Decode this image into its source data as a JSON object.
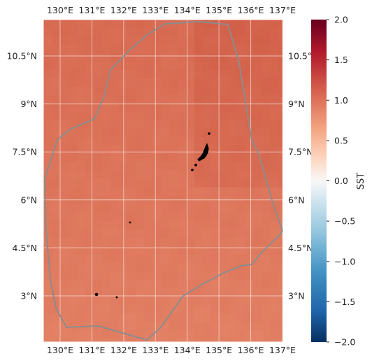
{
  "map": {
    "top_lon_labels": [
      "130°E",
      "131°E",
      "132°E",
      "133°E",
      "134°E",
      "135°E",
      "136°E",
      "137°E"
    ],
    "bottom_lon_labels": [
      "130°E",
      "131°E",
      "132°E",
      "133°E",
      "134°E",
      "135°E",
      "136°E",
      "137°E"
    ],
    "left_lat_labels": [
      "10.5°N",
      "9°N",
      "7.5°N",
      "6°N",
      "4.5°N",
      "3°N"
    ],
    "right_lat_labels": [
      "10.5°",
      "9°N",
      "7.5°N",
      "6°N",
      "4.5°N",
      "3°N"
    ],
    "lon_range": [
      129.4,
      137.0
    ],
    "lat_range": [
      1.6,
      11.6
    ],
    "gridlines": true,
    "boundary_color": "#8c8c8c",
    "land_color": "#000000"
  },
  "colorbar": {
    "label": "SST",
    "ticks": [
      "2.0",
      "1.5",
      "1.0",
      "0.5",
      "0.0",
      "−0.5",
      "−1.0",
      "−1.5",
      "−2.0"
    ],
    "tick_values": [
      2.0,
      1.5,
      1.0,
      0.5,
      0.0,
      -0.5,
      -1.0,
      -1.5,
      -2.0
    ],
    "range": [
      -2.0,
      2.0
    ],
    "colormap": "RdBu_r"
  }
}
